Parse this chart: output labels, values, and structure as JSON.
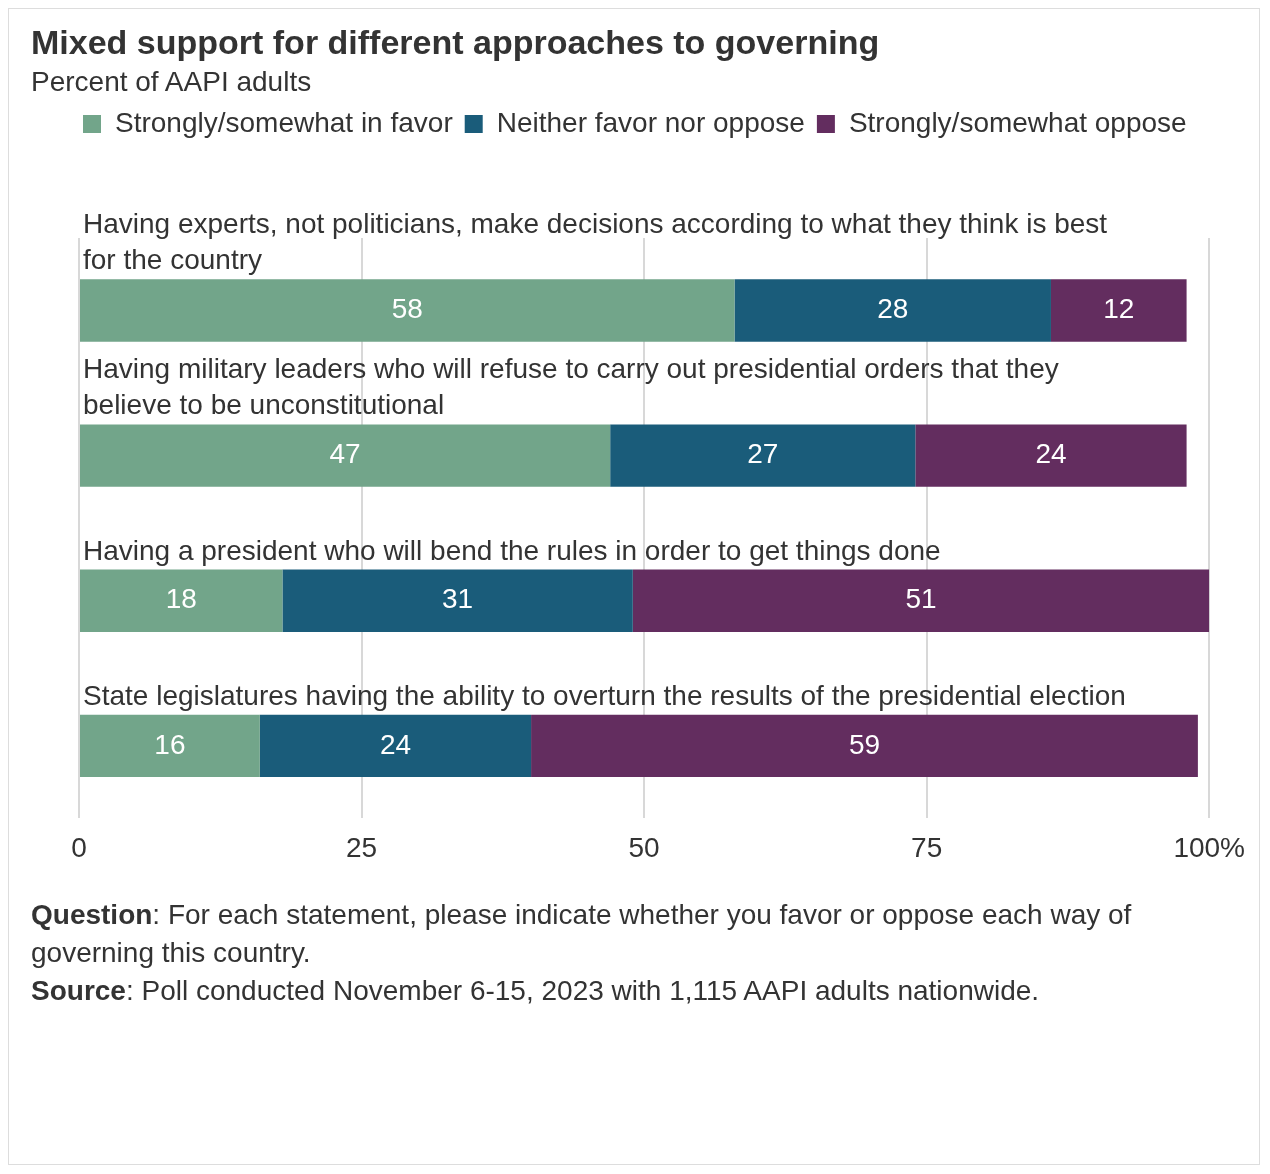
{
  "chart_data": {
    "type": "bar",
    "orientation": "horizontal",
    "stacked": true,
    "title": "Mixed support for different approaches to governing",
    "subtitle": "Percent of AAPI adults",
    "categories": [
      "Having experts, not politicians, make decisions according to what they think is best for the country",
      "Having military leaders who will refuse to carry out presidential orders that they believe to be unconstitutional",
      "Having a president who will bend the rules in order to get things done",
      "State legislatures having the ability to overturn the results of the presidential election"
    ],
    "series": [
      {
        "name": "Strongly/somewhat in favor",
        "color": "#72a58a",
        "values": [
          58,
          47,
          18,
          16
        ]
      },
      {
        "name": "Neither favor nor oppose",
        "color": "#1a5c7a",
        "values": [
          28,
          27,
          31,
          24
        ]
      },
      {
        "name": "Strongly/somewhat oppose",
        "color": "#632d5f",
        "values": [
          12,
          24,
          51,
          59
        ]
      }
    ],
    "xlim": [
      0,
      100
    ],
    "xticks": [
      0,
      25,
      50,
      75,
      {
        "value": 100,
        "label": "100%"
      }
    ],
    "grid": "x",
    "legend": "top left",
    "data_labels": true,
    "tick_labels": "x",
    "annotations": [
      "Question: For each statement, please indicate whether you favor or oppose each way of governing this country.",
      "Source: Poll conducted November 6-15, 2023 with 1,115 AAPI adults nationwide."
    ]
  }
}
